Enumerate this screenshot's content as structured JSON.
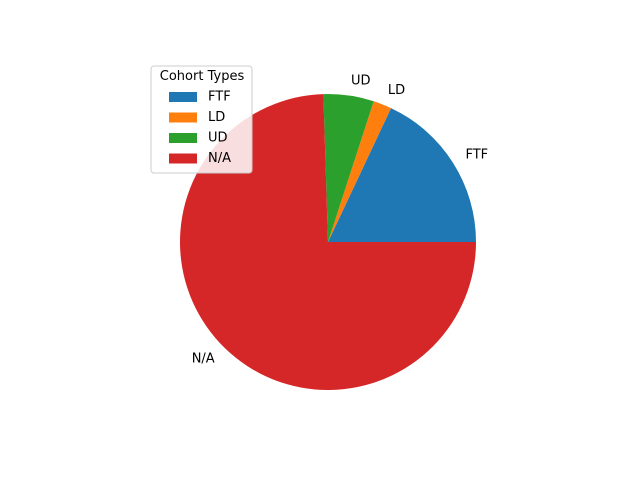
{
  "chart_data": {
    "type": "pie",
    "categories": [
      "FTF",
      "LD",
      "UD",
      "N/A"
    ],
    "values": [
      18,
      2,
      5.5,
      74.5
    ],
    "colors": [
      "#1f77b4",
      "#ff7f0e",
      "#2ca02c",
      "#d62728"
    ],
    "start_angle_deg": 0,
    "direction": "counterclockwise",
    "legend": {
      "title": "Cohort Types",
      "placement": "upper-left"
    }
  }
}
